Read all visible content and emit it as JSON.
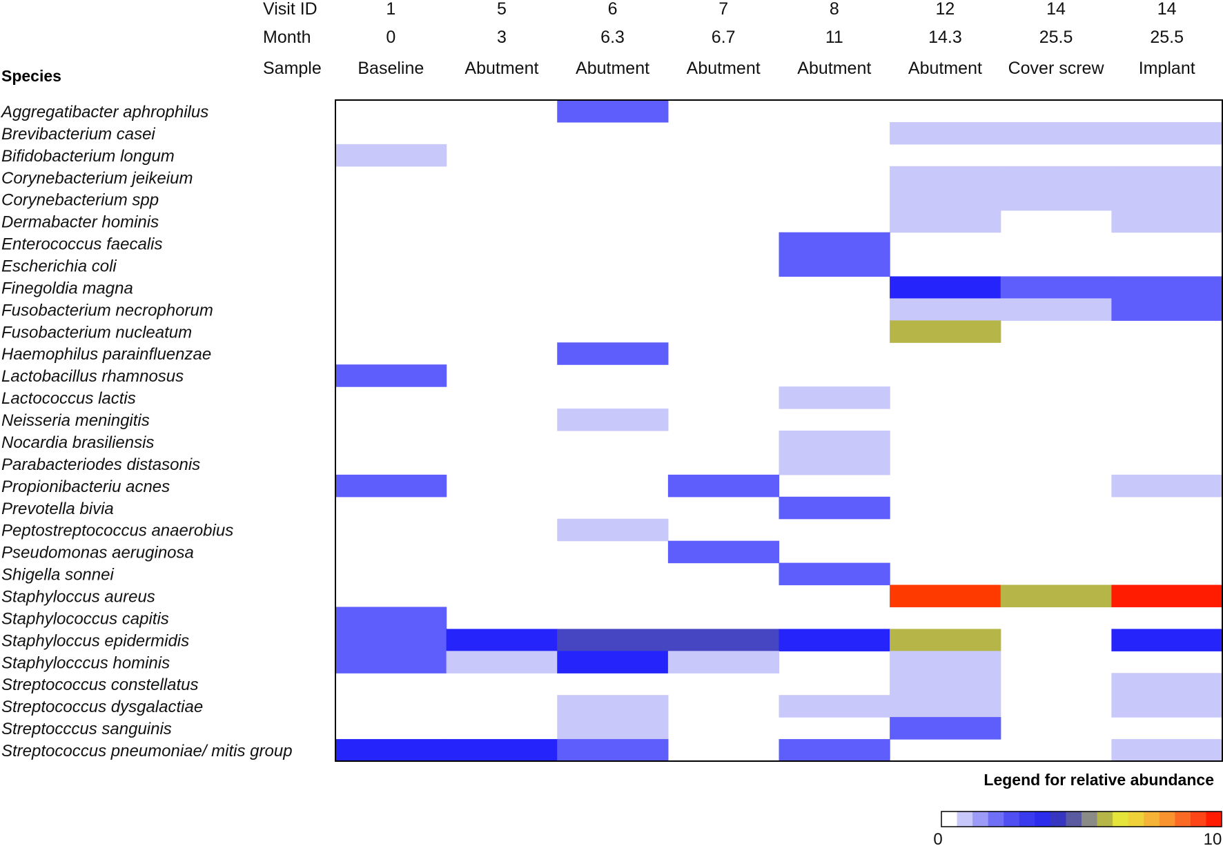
{
  "chart_data": {
    "type": "heatmap",
    "row_header_label": "Species",
    "column_headers": [
      {
        "label": "Visit ID",
        "values": [
          "1",
          "5",
          "6",
          "7",
          "8",
          "12",
          "14",
          "14"
        ]
      },
      {
        "label": "Month",
        "values": [
          "0",
          "3",
          "6.3",
          "6.7",
          "11",
          "14.3",
          "25.5",
          "25.5"
        ]
      },
      {
        "label": "Sample",
        "values": [
          "Baseline",
          "Abutment",
          "Abutment",
          "Abutment",
          "Abutment",
          "Abutment",
          "Cover screw",
          "Implant"
        ]
      }
    ],
    "species": [
      "Aggregatibacter aphrophilus",
      "Brevibacterium casei",
      "Bifidobacterium longum",
      "Corynebacterium jeikeium",
      "Corynebacterium spp",
      "Dermabacter hominis",
      "Enterococcus faecalis",
      "Escherichia coli",
      "Finegoldia magna",
      "Fusobacterium necrophorum",
      "Fusobacterium nucleatum",
      "Haemophilus parainfluenzae",
      "Lactobacillus rhamnosus",
      "Lactococcus lactis",
      "Neisseria meningitis",
      "Nocardia brasiliensis",
      "Parabacteriodes distasonis",
      "Propionibacteriu acnes",
      "Prevotella bivia",
      "Peptostreptococcus anaerobius",
      "Pseudomonas aeruginosa",
      "Shigella sonnei",
      "Staphyloccus aureus",
      "Staphylococcus capitis",
      "Staphyloccus epidermidis",
      "Staphylocccus hominis",
      "Streptococcus constellatus",
      "Streptococcus dysgalactiae",
      "Streptocccus sanguinis",
      "Streptococcus pneumoniae/ mitis group"
    ],
    "values": [
      [
        0,
        0,
        2,
        0,
        0,
        0,
        0,
        0
      ],
      [
        0,
        0,
        0,
        0,
        0,
        1,
        1,
        1
      ],
      [
        1,
        0,
        0,
        0,
        0,
        0,
        0,
        0
      ],
      [
        0,
        0,
        0,
        0,
        0,
        1,
        1,
        1
      ],
      [
        0,
        0,
        0,
        0,
        0,
        1,
        1,
        1
      ],
      [
        0,
        0,
        0,
        0,
        0,
        1,
        0,
        1
      ],
      [
        0,
        0,
        0,
        0,
        2,
        0,
        0,
        0
      ],
      [
        0,
        0,
        0,
        0,
        2,
        0,
        0,
        0
      ],
      [
        0,
        0,
        0,
        0,
        0,
        4,
        2,
        2
      ],
      [
        0,
        0,
        0,
        0,
        0,
        1,
        1,
        2
      ],
      [
        0,
        0,
        0,
        0,
        0,
        6,
        0,
        0
      ],
      [
        0,
        0,
        2,
        0,
        0,
        0,
        0,
        0
      ],
      [
        2,
        0,
        0,
        0,
        0,
        0,
        0,
        0
      ],
      [
        0,
        0,
        0,
        0,
        1,
        0,
        0,
        0
      ],
      [
        0,
        0,
        1,
        0,
        0,
        0,
        0,
        0
      ],
      [
        0,
        0,
        0,
        0,
        1,
        0,
        0,
        0
      ],
      [
        0,
        0,
        0,
        0,
        1,
        0,
        0,
        0
      ],
      [
        2,
        0,
        0,
        2,
        0,
        0,
        0,
        1
      ],
      [
        0,
        0,
        0,
        0,
        2,
        0,
        0,
        0
      ],
      [
        0,
        0,
        1,
        0,
        0,
        0,
        0,
        0
      ],
      [
        0,
        0,
        0,
        2,
        0,
        0,
        0,
        0
      ],
      [
        0,
        0,
        0,
        0,
        2,
        0,
        0,
        0
      ],
      [
        0,
        0,
        0,
        0,
        0,
        9,
        6,
        10
      ],
      [
        2,
        0,
        0,
        0,
        0,
        0,
        0,
        0
      ],
      [
        2,
        4,
        5,
        5,
        4,
        6,
        0,
        4
      ],
      [
        2,
        1,
        4,
        1,
        0,
        1,
        0,
        0
      ],
      [
        0,
        0,
        0,
        0,
        0,
        1,
        0,
        1
      ],
      [
        0,
        0,
        1,
        0,
        1,
        1,
        0,
        1
      ],
      [
        0,
        0,
        1,
        0,
        0,
        2,
        0,
        0
      ],
      [
        4,
        4,
        2,
        0,
        2,
        0,
        0,
        1
      ]
    ],
    "value_range": [
      0,
      10
    ],
    "color_scale": {
      "0": "#ffffff",
      "1": "#c8c8fb",
      "2": "#5e5efd",
      "4": "#2424fb",
      "5": "#4646c2",
      "6": "#b6b648",
      "9": "#ff3a00",
      "10": "#ff1c00"
    },
    "legend": {
      "title": "Legend for relative abundance",
      "min_label": "0",
      "max_label": "10",
      "colors": [
        "#ffffff",
        "#c8c8fb",
        "#9c9cf8",
        "#7070f6",
        "#5050f2",
        "#3a3aee",
        "#2c2cec",
        "#3636c0",
        "#5a5aa0",
        "#8a8a86",
        "#b6b648",
        "#e4e43a",
        "#efd23a",
        "#f5b338",
        "#f8932e",
        "#fb6a24",
        "#fd4518",
        "#ff1c00"
      ]
    }
  }
}
